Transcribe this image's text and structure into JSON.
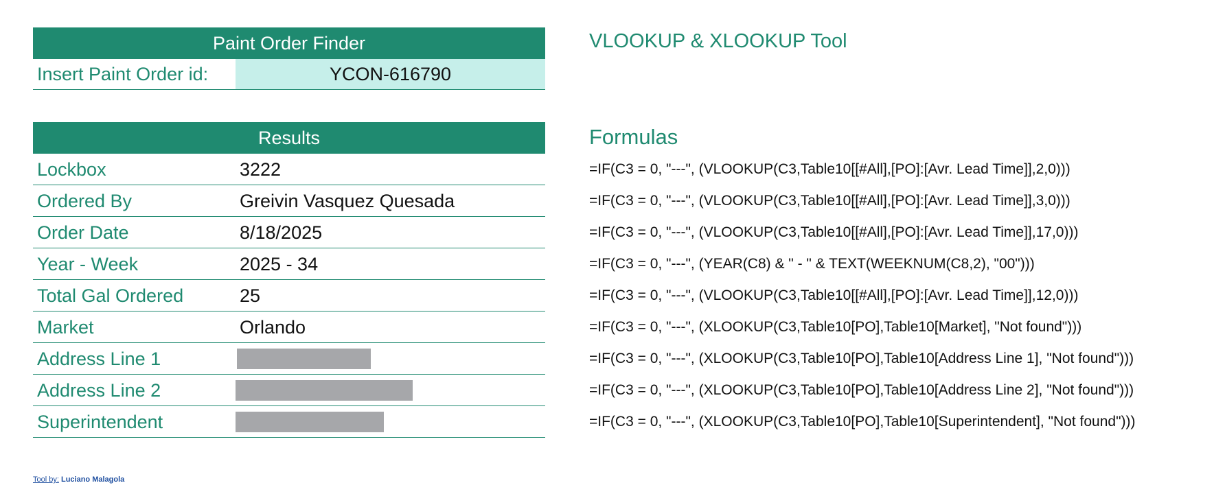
{
  "finder": {
    "title": "Paint Order Finder",
    "input_label": "Insert Paint Order id:",
    "input_value": "YCON-616790"
  },
  "results": {
    "title": "Results",
    "rows": [
      {
        "label": "Lockbox",
        "value": "3222"
      },
      {
        "label": "Ordered By",
        "value": "Greivin Vasquez Quesada"
      },
      {
        "label": "Order Date",
        "value": "8/18/2025"
      },
      {
        "label": "Year - Week",
        "value": "2025 - 34"
      },
      {
        "label": "Total Gal Ordered",
        "value": "25"
      },
      {
        "label": "Market",
        "value": "Orlando"
      },
      {
        "label": "Address Line 1",
        "value": null
      },
      {
        "label": "Address Line 2",
        "value": null
      },
      {
        "label": "Superintendent",
        "value": null
      }
    ]
  },
  "tool_title": "VLOOKUP & XLOOKUP Tool",
  "formulas": {
    "title": "Formulas",
    "items": [
      "=IF(C3 = 0, \"---\", (VLOOKUP(C3,Table10[[#All],[PO]:[Avr. Lead Time]],2,0)))",
      "=IF(C3 = 0, \"---\", (VLOOKUP(C3,Table10[[#All],[PO]:[Avr. Lead Time]],3,0)))",
      "=IF(C3 = 0, \"---\", (VLOOKUP(C3,Table10[[#All],[PO]:[Avr. Lead Time]],17,0)))",
      "=IF(C3 = 0, \"---\", (YEAR(C8) & \" - \" & TEXT(WEEKNUM(C8,2), \"00\")))",
      "=IF(C3 = 0, \"---\", (VLOOKUP(C3,Table10[[#All],[PO]:[Avr. Lead Time]],12,0)))",
      "=IF(C3 = 0, \"---\", (XLOOKUP(C3,Table10[PO],Table10[Market], \"Not found\")))",
      "=IF(C3 = 0, \"---\", (XLOOKUP(C3,Table10[PO],Table10[Address Line 1], \"Not found\")))",
      "=IF(C3 = 0, \"---\", (XLOOKUP(C3,Table10[PO],Table10[Address Line 2], \"Not found\")))",
      "=IF(C3 = 0, \"---\", (XLOOKUP(C3,Table10[PO],Table10[Superintendent], \"Not found\")))"
    ]
  },
  "footer": {
    "label": "Tool by:",
    "author": "Luciano Malagola"
  },
  "colors": {
    "accent": "#1f8a70",
    "input_fill": "#c6efea",
    "redaction": "#a6a7aa"
  }
}
